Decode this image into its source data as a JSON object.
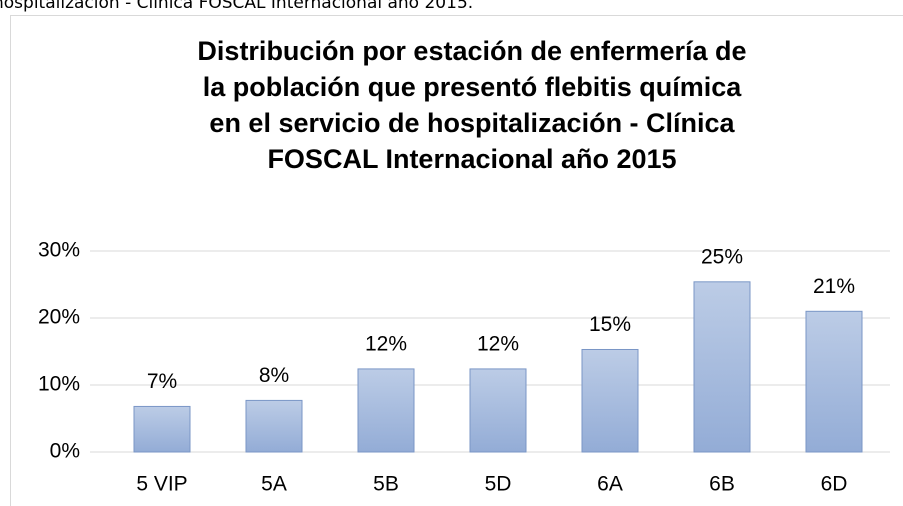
{
  "caption": "hospitalización - Clínica FOSCAL Internacional año 2015.",
  "chart_data": {
    "type": "bar",
    "title": [
      "Distribución por estación de enfermería de",
      "la población que presentó flebitis química",
      "en el servicio de hospitalización - Clínica",
      "FOSCAL Internacional año 2015"
    ],
    "categories": [
      "5 VIP",
      "5A",
      "5B",
      "5D",
      "6A",
      "6B",
      "6D"
    ],
    "values": [
      6.8,
      7.7,
      12.4,
      12.4,
      15.3,
      25.4,
      21.0
    ],
    "value_labels": [
      "7%",
      "8%",
      "12%",
      "12%",
      "15%",
      "25%",
      "21%"
    ],
    "color": "#7a96c6",
    "ylim": [
      0,
      30
    ],
    "yticks": [
      {
        "value": 0,
        "label": "0%"
      },
      {
        "value": 10,
        "label": "10%"
      },
      {
        "value": 20,
        "label": "20%"
      },
      {
        "value": 30,
        "label": "30%"
      }
    ],
    "grid": true
  }
}
